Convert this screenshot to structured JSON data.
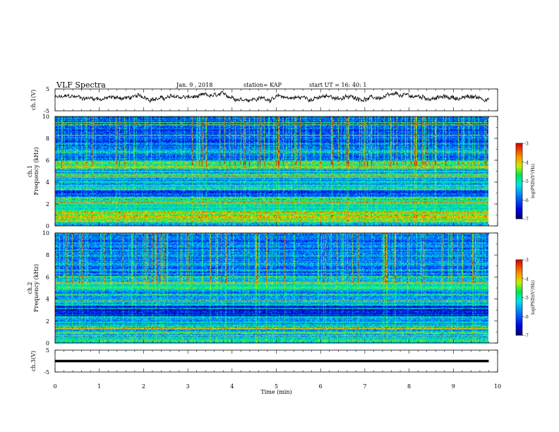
{
  "header": {
    "title": "VLF Spectra",
    "date": "Jan. 9 , 2018",
    "station": "station= KAP",
    "start": "start UT = 16: 40: 1"
  },
  "chart_data": [
    {
      "type": "line",
      "name": "ch1-voltage",
      "ylabel": "ch.1(V)",
      "ylim": [
        -5,
        5
      ],
      "yticks": [
        "5",
        "-5"
      ],
      "xlim": [
        0,
        10
      ],
      "description_level": "noisy trace fluctuating between about -1 and 3 V",
      "y_mean": 1,
      "y_swing": 1.6
    },
    {
      "type": "heatmap",
      "name": "ch1-spectrogram",
      "ylabel": "ch.1\nFrequency (kHz)",
      "ylim": [
        0,
        10
      ],
      "yticks": [
        "0",
        "2",
        "4",
        "6",
        "8",
        "10"
      ],
      "xlim": [
        0,
        9.8
      ],
      "colorbar": {
        "label": "log(PSD)(V²/Hz)",
        "ticks": [
          "-3",
          "-4",
          "-5",
          "-6",
          "-7"
        ],
        "range": [
          -7,
          -3
        ]
      },
      "bands_khz": [
        {
          "f": [
            0.0,
            0.3
          ],
          "level": -5.2
        },
        {
          "f": [
            0.3,
            0.8
          ],
          "level": -4.4
        },
        {
          "f": [
            0.8,
            1.3
          ],
          "level": -4.2
        },
        {
          "f": [
            1.3,
            2.0
          ],
          "level": -5.0
        },
        {
          "f": [
            2.0,
            2.6
          ],
          "level": -4.9
        },
        {
          "f": [
            2.6,
            3.2
          ],
          "level": -6.2
        },
        {
          "f": [
            3.2,
            4.2
          ],
          "level": -5.6
        },
        {
          "f": [
            4.2,
            5.2
          ],
          "level": -5.4
        },
        {
          "f": [
            5.2,
            6.0
          ],
          "level": -4.8
        },
        {
          "f": [
            6.0,
            7.0
          ],
          "level": -5.8
        },
        {
          "f": [
            7.0,
            10.0
          ],
          "level": -6.0
        }
      ]
    },
    {
      "type": "heatmap",
      "name": "ch2-spectrogram",
      "ylabel": "ch.2\nFrequency (kHz)",
      "ylim": [
        0,
        10
      ],
      "yticks": [
        "0",
        "2",
        "4",
        "6",
        "8",
        "10"
      ],
      "xlim": [
        0,
        9.8
      ],
      "colorbar": {
        "label": "log(PSD)(V²/Hz)",
        "ticks": [
          "-3",
          "-4",
          "-5",
          "-6",
          "-7"
        ],
        "range": [
          -7,
          -3
        ]
      },
      "bands_khz": [
        {
          "f": [
            0.0,
            0.5
          ],
          "level": -5.0
        },
        {
          "f": [
            0.5,
            1.5
          ],
          "level": -5.3
        },
        {
          "f": [
            1.5,
            2.4
          ],
          "level": -5.6
        },
        {
          "f": [
            2.4,
            3.4
          ],
          "level": -6.3
        },
        {
          "f": [
            3.4,
            4.0
          ],
          "level": -5.4
        },
        {
          "f": [
            4.0,
            4.8
          ],
          "level": -5.6
        },
        {
          "f": [
            4.8,
            6.0
          ],
          "level": -5.1
        },
        {
          "f": [
            6.0,
            10.0
          ],
          "level": -5.8
        }
      ]
    },
    {
      "type": "line",
      "name": "ch3-voltage",
      "ylabel": "ch.3(V)",
      "ylim": [
        -5,
        5
      ],
      "yticks": [
        "5",
        "-5"
      ],
      "xlim": [
        0,
        10
      ],
      "description_level": "flat line near 0 V",
      "y_mean": 0,
      "y_swing": 0
    }
  ],
  "xaxis": {
    "label": "Time (min)",
    "ticks": [
      "0",
      "1",
      "2",
      "3",
      "4",
      "5",
      "6",
      "7",
      "8",
      "9",
      "10"
    ],
    "range": [
      0,
      10
    ]
  }
}
